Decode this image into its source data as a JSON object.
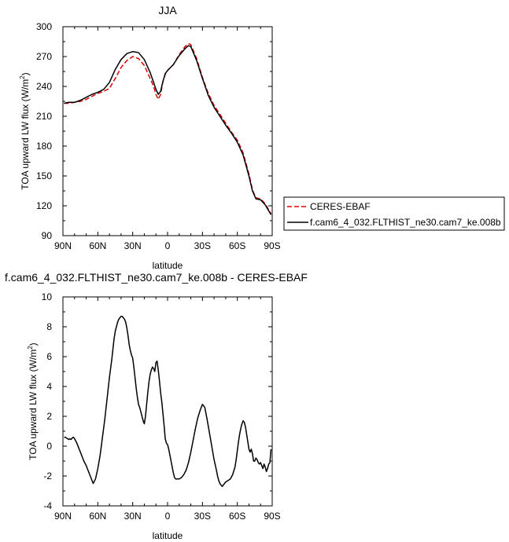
{
  "chart_data": [
    {
      "type": "line",
      "title": "JJA",
      "xlabel": "latitude",
      "ylabel": "TOA upward LW flux (W/m",
      "ylabel_superscript": "2",
      "ylabel_suffix": ")",
      "xlim": [
        90,
        -90
      ],
      "ylim": [
        90,
        300
      ],
      "x_ticks": [
        90,
        60,
        30,
        0,
        -30,
        -60,
        -90
      ],
      "x_tick_labels": [
        "90N",
        "60N",
        "30N",
        "0",
        "30S",
        "60S",
        "90S"
      ],
      "y_ticks": [
        90,
        120,
        150,
        180,
        210,
        240,
        270,
        300
      ],
      "y_tick_labels": [
        "90",
        "120",
        "150",
        "180",
        "210",
        "240",
        "270",
        "300"
      ],
      "legend_position": "outside-right",
      "series": [
        {
          "name": "CERES-EBAF",
          "color": "#dd0000",
          "dash": "dashed",
          "x": [
            89,
            85,
            80,
            75,
            70,
            65,
            60,
            55,
            50,
            45,
            40,
            35,
            30,
            25,
            20,
            15,
            12,
            10,
            8,
            6,
            4,
            2,
            0,
            -5,
            -10,
            -15,
            -18,
            -20,
            -25,
            -30,
            -35,
            -40,
            -45,
            -50,
            -55,
            -60,
            -65,
            -70,
            -73,
            -76,
            -80,
            -84,
            -87,
            -89
          ],
          "y": [
            223,
            223,
            224,
            225,
            227,
            230,
            233,
            235,
            238,
            248,
            259,
            266,
            270,
            268,
            261,
            248,
            240,
            232,
            227,
            232,
            245,
            252,
            256,
            262,
            272,
            280,
            283,
            282,
            268,
            249,
            233,
            221,
            212,
            203,
            194,
            186,
            173,
            152,
            136,
            128,
            127,
            122,
            116,
            112
          ]
        },
        {
          "name": "f.cam6_4_032.FLTHIST_ne30.cam7_ke.008b",
          "color": "#000000",
          "dash": "solid",
          "x": [
            89,
            85,
            80,
            75,
            70,
            65,
            60,
            55,
            50,
            45,
            40,
            35,
            30,
            25,
            20,
            15,
            12,
            10,
            8,
            6,
            4,
            2,
            0,
            -5,
            -10,
            -15,
            -18,
            -20,
            -25,
            -30,
            -35,
            -40,
            -45,
            -50,
            -55,
            -60,
            -65,
            -70,
            -73,
            -76,
            -80,
            -84,
            -87,
            -89
          ],
          "y": [
            223,
            224,
            224,
            226,
            229,
            232,
            234,
            237,
            244,
            257,
            267,
            273,
            275,
            274,
            267,
            254,
            244,
            237,
            232,
            235,
            245,
            253,
            256,
            262,
            271,
            278,
            281,
            280,
            266,
            248,
            231,
            219,
            210,
            201,
            193,
            184,
            171,
            150,
            135,
            127,
            126,
            121,
            115,
            111
          ]
        }
      ]
    },
    {
      "type": "line",
      "title": "f.cam6_4_032.FLTHIST_ne30.cam7_ke.008b - CERES-EBAF",
      "xlabel": "latitude",
      "ylabel": "TOA upward LW flux (W/m",
      "ylabel_superscript": "2",
      "ylabel_suffix": ")",
      "xlim": [
        90,
        -90
      ],
      "ylim": [
        -4,
        10
      ],
      "x_ticks": [
        90,
        60,
        30,
        0,
        -30,
        -60,
        -90
      ],
      "x_tick_labels": [
        "90N",
        "60N",
        "30N",
        "0",
        "30S",
        "60S",
        "90S"
      ],
      "y_ticks": [
        -4,
        -2,
        0,
        2,
        4,
        6,
        8,
        10
      ],
      "y_tick_labels": [
        "-4",
        "-2",
        "0",
        "2",
        "4",
        "6",
        "8",
        "10"
      ],
      "series": [
        {
          "color": "#000000",
          "x": [
            89,
            88,
            87,
            86,
            85,
            84,
            83,
            82,
            81,
            80,
            78,
            76,
            74,
            72,
            70,
            69,
            68,
            67,
            66,
            65,
            64,
            62,
            60,
            58,
            56,
            54,
            52,
            50,
            48,
            47,
            46,
            45,
            44,
            43,
            42,
            41,
            40,
            39,
            38,
            37,
            36,
            35,
            34,
            33,
            32,
            31,
            30,
            29,
            28,
            27,
            26,
            25,
            24,
            23,
            22,
            21,
            20,
            19,
            18,
            17,
            16,
            15,
            14,
            13,
            12,
            11,
            10,
            9,
            8,
            7,
            6,
            5,
            4,
            3,
            2,
            1,
            0,
            -1,
            -2,
            -3,
            -4,
            -5,
            -6,
            -7,
            -8,
            -9,
            -10,
            -12,
            -14,
            -16,
            -18,
            -20,
            -22,
            -24,
            -26,
            -28,
            -30,
            -32,
            -34,
            -36,
            -38,
            -40,
            -42,
            -43,
            -44,
            -45,
            -46,
            -47,
            -48,
            -49,
            -50,
            -52,
            -54,
            -56,
            -58,
            -59,
            -60,
            -61,
            -62,
            -63,
            -64,
            -65,
            -66,
            -67,
            -68,
            -69,
            -70,
            -71,
            -72,
            -73,
            -74,
            -75,
            -76,
            -77,
            -78,
            -79,
            -80,
            -81,
            -82,
            -83,
            -84,
            -85,
            -86,
            -87,
            -88,
            -89
          ],
          "y": [
            0.6,
            0.6,
            0.55,
            0.5,
            0.45,
            0.5,
            0.45,
            0.55,
            0.6,
            0.5,
            0.2,
            -0.2,
            -0.6,
            -1.0,
            -1.3,
            -1.5,
            -1.7,
            -1.9,
            -2.1,
            -2.3,
            -2.5,
            -2.2,
            -1.5,
            -0.6,
            0.6,
            1.8,
            3.2,
            4.6,
            5.8,
            6.5,
            7.2,
            7.7,
            8.0,
            8.3,
            8.5,
            8.6,
            8.7,
            8.7,
            8.6,
            8.5,
            8.3,
            7.9,
            7.4,
            6.8,
            6.4,
            6.1,
            5.9,
            5.3,
            4.6,
            3.9,
            3.3,
            2.8,
            2.6,
            2.3,
            2.0,
            1.7,
            1.5,
            2.0,
            2.8,
            3.6,
            4.3,
            4.8,
            5.1,
            5.3,
            5.2,
            5.0,
            5.6,
            5.7,
            5.1,
            4.4,
            3.6,
            3.0,
            2.2,
            1.4,
            0.5,
            0.2,
            0.1,
            -0.2,
            -0.6,
            -1.0,
            -1.4,
            -1.8,
            -2.1,
            -2.2,
            -2.2,
            -2.2,
            -2.2,
            -2.1,
            -1.9,
            -1.6,
            -1.1,
            -0.4,
            0.4,
            1.2,
            1.9,
            2.4,
            2.8,
            2.6,
            1.8,
            0.9,
            0.0,
            -0.9,
            -1.6,
            -2.0,
            -2.3,
            -2.5,
            -2.6,
            -2.7,
            -2.6,
            -2.5,
            -2.4,
            -2.3,
            -2.2,
            -1.9,
            -1.4,
            -0.9,
            -0.3,
            0.3,
            0.8,
            1.2,
            1.5,
            1.7,
            1.6,
            1.3,
            0.8,
            0.3,
            -0.2,
            -0.4,
            -0.2,
            -0.5,
            -1.0,
            -1.0,
            -0.8,
            -0.9,
            -1.1,
            -1.2,
            -1.1,
            -1.3,
            -1.5,
            -1.2,
            -1.4,
            -1.7,
            -1.5,
            -1.2,
            -1.1,
            -0.2
          ]
        }
      ]
    }
  ]
}
